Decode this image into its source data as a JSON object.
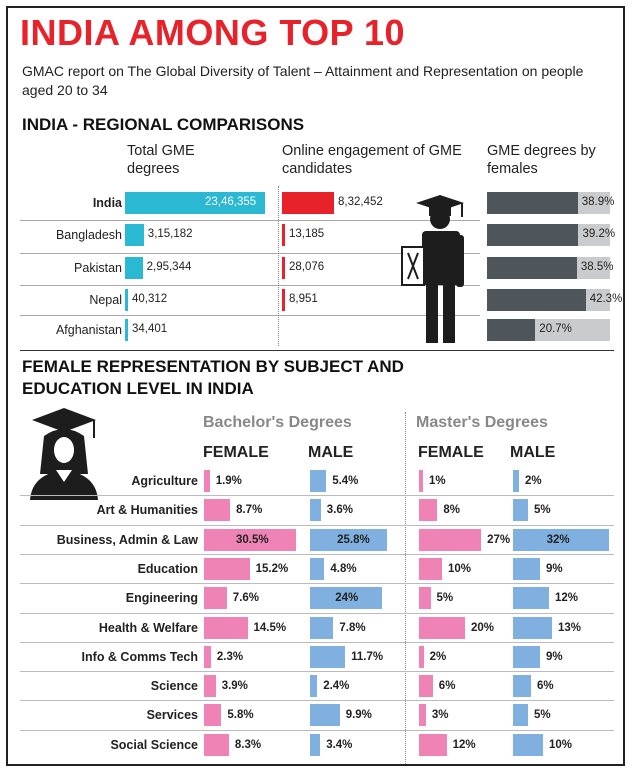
{
  "header": {
    "title": "INDIA AMONG TOP 10",
    "subtitle": "GMAC report on The Global Diversity of Talent – Attainment and Representation on people aged 20 to 34"
  },
  "icons": {
    "graduate_male": "graduate-male-icon",
    "graduate_female": "graduate-female-icon"
  },
  "colors": {
    "cyan": "#2ab8d2",
    "red": "#e8222a",
    "gray": "#4e565c",
    "gray_light": "#c9ccce",
    "pink": "#ef83b6",
    "blue": "#7fb0e0"
  },
  "chart_data": [
    {
      "type": "bar",
      "title": "INDIA - REGIONAL COMPARISONS",
      "categories": [
        "India",
        "Bangladesh",
        "Pakistan",
        "Nepal",
        "Afghanistan"
      ],
      "series": [
        {
          "name": "Total GME degrees",
          "values": [
            2346355,
            315182,
            295344,
            40312,
            34401
          ],
          "labels": [
            "23,46,355",
            "3,15,182",
            "2,95,344",
            "40,312",
            "34,401"
          ]
        },
        {
          "name": "Online engagement of GME candidates",
          "values": [
            832452,
            13185,
            28076,
            8951,
            null
          ],
          "labels": [
            "8,32,452",
            "13,185",
            "28,076",
            "8,951",
            ""
          ]
        },
        {
          "name": "GME degrees by females",
          "values": [
            38.9,
            39.2,
            38.5,
            42.3,
            20.7
          ],
          "labels": [
            "38.9%",
            "39.2%",
            "38.5%",
            "42.3%",
            "20.7%"
          ]
        }
      ]
    },
    {
      "type": "bar",
      "title": "FEMALE REPRESENTATION BY SUBJECT AND EDUCATION LEVEL IN INDIA",
      "groups": [
        "Bachelor's Degrees",
        "Master's Degrees"
      ],
      "sexes": [
        "FEMALE",
        "MALE"
      ],
      "categories": [
        "Agriculture",
        "Art & Humanities",
        "Business, Admin & Law",
        "Education",
        "Engineering",
        "Health & Welfare",
        "Info & Comms Tech",
        "Science",
        "Services",
        "Social Science"
      ],
      "series": [
        {
          "name": "Bachelor's FEMALE",
          "values": [
            1.9,
            8.7,
            30.5,
            15.2,
            7.6,
            14.5,
            2.3,
            3.9,
            5.8,
            8.3
          ],
          "labels": [
            "1.9%",
            "8.7%",
            "30.5%",
            "15.2%",
            "7.6%",
            "14.5%",
            "2.3%",
            "3.9%",
            "5.8%",
            "8.3%"
          ]
        },
        {
          "name": "Bachelor's MALE",
          "values": [
            5.4,
            3.6,
            25.8,
            4.8,
            24,
            7.8,
            11.7,
            2.4,
            9.9,
            3.4
          ],
          "labels": [
            "5.4%",
            "3.6%",
            "25.8%",
            "4.8%",
            "24%",
            "7.8%",
            "11.7%",
            "2.4%",
            "9.9%",
            "3.4%"
          ]
        },
        {
          "name": "Master's FEMALE",
          "values": [
            1,
            8,
            27,
            10,
            5,
            20,
            2,
            6,
            3,
            12
          ],
          "labels": [
            "1%",
            "8%",
            "27%",
            "10%",
            "5%",
            "20%",
            "2%",
            "6%",
            "3%",
            "12%"
          ]
        },
        {
          "name": "Master's MALE",
          "values": [
            2,
            5,
            32,
            9,
            12,
            13,
            9,
            6,
            5,
            10
          ],
          "labels": [
            "2%",
            "5%",
            "32%",
            "9%",
            "12%",
            "13%",
            "9%",
            "6%",
            "5%",
            "10%"
          ]
        }
      ]
    }
  ]
}
